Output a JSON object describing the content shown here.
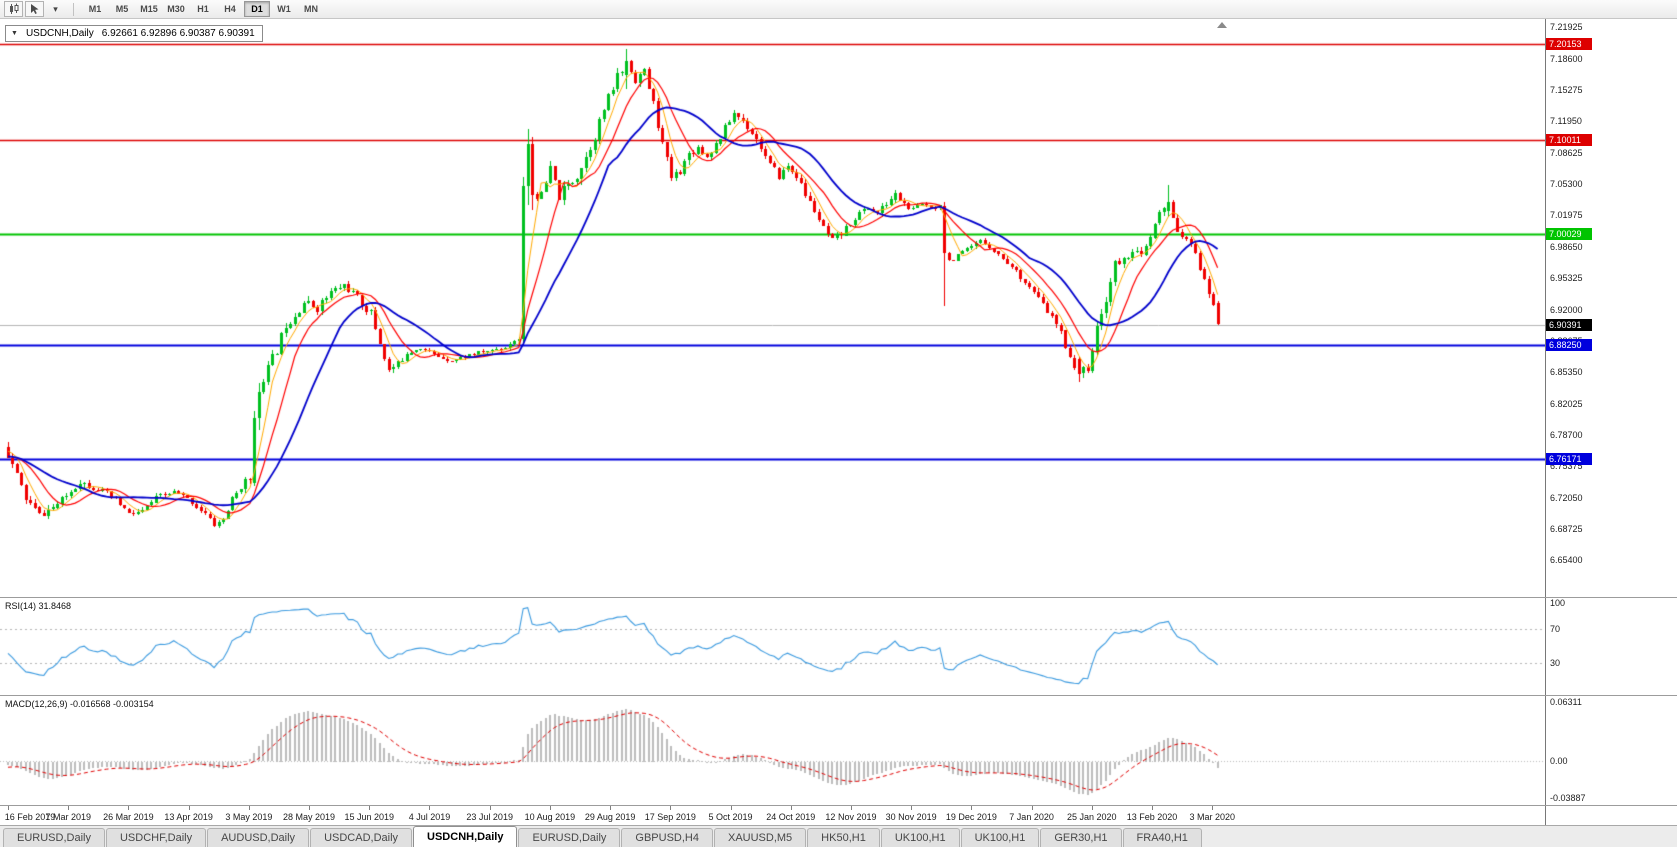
{
  "toolbar": {
    "timeframes": [
      "M1",
      "M5",
      "M15",
      "M30",
      "H1",
      "H4",
      "D1",
      "W1",
      "MN"
    ],
    "active_timeframe": "D1",
    "icons": [
      "candlestick-chart-icon",
      "cursor-icon",
      "dropdown-caret-icon"
    ]
  },
  "chart": {
    "symbol_label": "USDCNH,Daily",
    "ohlc_text": "6.92661 6.92896 6.90387 6.90391",
    "open": "6.92661",
    "high": "6.92896",
    "low": "6.90387",
    "close": "6.90391"
  },
  "rsi": {
    "label": "RSI(14) 31.8468",
    "period": 14,
    "current": 31.8468,
    "levels": [
      70,
      30
    ],
    "axis_labels": [
      "100",
      "70",
      "30"
    ],
    "axis_values": [
      100,
      70,
      30
    ],
    "ylim": [
      0,
      100
    ],
    "color": "#3c9be0"
  },
  "macd": {
    "label": "MACD(12,26,9) -0.016568 -0.003154",
    "fast": 12,
    "slow": 26,
    "signal_period": 9,
    "current_main": -0.016568,
    "current_signal": -0.003154,
    "axis_labels": [
      "0.06311",
      "0.00",
      "-0.03887"
    ],
    "axis_values": [
      0.06311,
      0,
      -0.03887
    ],
    "ylim": [
      -0.03887,
      0.06311
    ],
    "histogram_color": "#bdbdbd",
    "signal_color": "#e00000"
  },
  "tabs": {
    "items": [
      {
        "label": "EURUSD,Daily",
        "active": false
      },
      {
        "label": "USDCHF,Daily",
        "active": false
      },
      {
        "label": "AUDUSD,Daily",
        "active": false
      },
      {
        "label": "USDCAD,Daily",
        "active": false
      },
      {
        "label": "USDCNH,Daily",
        "active": true
      },
      {
        "label": "EURUSD,Daily",
        "active": false
      },
      {
        "label": "GBPUSD,H4",
        "active": false
      },
      {
        "label": "XAUUSD,M5",
        "active": false
      },
      {
        "label": "HK50,H1",
        "active": false
      },
      {
        "label": "UK100,H1",
        "active": false
      },
      {
        "label": "UK100,H1",
        "active": false
      },
      {
        "label": "GER30,H1",
        "active": false
      },
      {
        "label": "FRA40,H1",
        "active": false
      }
    ]
  },
  "chart_data": {
    "type": "candlestick",
    "symbol": "USDCNH",
    "timeframe": "Daily",
    "ohlc_current": {
      "open": 6.92661,
      "high": 6.92896,
      "low": 6.90387,
      "close": 6.90391
    },
    "ylim": [
      6.6142,
      7.228
    ],
    "y_tick_labels": [
      "7.21925",
      "7.18600",
      "7.15275",
      "7.11950",
      "7.08625",
      "7.05300",
      "7.01975",
      "6.98650",
      "6.95325",
      "6.92000",
      "6.88675",
      "6.85350",
      "6.82025",
      "6.78700",
      "6.75375",
      "6.72050",
      "6.68725",
      "6.65400"
    ],
    "x_labels": [
      "16 Feb 2019",
      "7 Mar 2019",
      "26 Mar 2019",
      "13 Apr 2019",
      "3 May 2019",
      "28 May 2019",
      "15 Jun 2019",
      "4 Jul 2019",
      "23 Jul 2019",
      "10 Aug 2019",
      "29 Aug 2019",
      "17 Sep 2019",
      "5 Oct 2019",
      "24 Oct 2019",
      "12 Nov 2019",
      "30 Nov 2019",
      "19 Dec 2019",
      "7 Jan 2020",
      "25 Jan 2020",
      "13 Feb 2020",
      "3 Mar 2020"
    ],
    "candles_per_x_label": 13.44,
    "visible_candles": 271,
    "prehistory_candles": 60,
    "seed": 11,
    "up_color": "#00c020",
    "down_color": "#f00000",
    "horizontal_levels": [
      {
        "price": 7.20153,
        "label": "7.20153",
        "color": "#dd0000",
        "width": 1.5
      },
      {
        "price": 7.10011,
        "label": "7.10011",
        "color": "#dd0000",
        "width": 1.5
      },
      {
        "price": 7.00029,
        "label": "7.00029",
        "color": "#00c400",
        "width": 2
      },
      {
        "price": 6.8825,
        "label": "6.88250",
        "color": "#0000dd",
        "width": 2
      },
      {
        "price": 6.76171,
        "label": "6.76171",
        "color": "#0000dd",
        "width": 2
      }
    ],
    "bid_line": {
      "price": 6.90391,
      "label": "6.90391",
      "color": "#b4b4b4",
      "tag_color": "#000000"
    },
    "moving_averages": [
      {
        "period": 5,
        "color": "#ffaa00",
        "width": 1
      },
      {
        "period": 10,
        "color": "#ff0000",
        "width": 1.2
      },
      {
        "period": 20,
        "color": "#0000cc",
        "width": 1.8
      }
    ],
    "price_path_anchors": [
      [
        -60,
        6.85,
        0.01
      ],
      [
        -40,
        6.8,
        0.009
      ],
      [
        -20,
        6.77,
        0.008
      ],
      [
        -5,
        6.758,
        0.008
      ],
      [
        0,
        6.778,
        0.01
      ],
      [
        2,
        6.755,
        0.012
      ],
      [
        5,
        6.72,
        0.011
      ],
      [
        8,
        6.702,
        0.01
      ],
      [
        11,
        6.71,
        0.009
      ],
      [
        14,
        6.722,
        0.008
      ],
      [
        17,
        6.738,
        0.008
      ],
      [
        21,
        6.73,
        0.007
      ],
      [
        25,
        6.718,
        0.007
      ],
      [
        28,
        6.703,
        0.008
      ],
      [
        31,
        6.706,
        0.007
      ],
      [
        34,
        6.72,
        0.007
      ],
      [
        38,
        6.727,
        0.006
      ],
      [
        42,
        6.716,
        0.006
      ],
      [
        45,
        6.703,
        0.007
      ],
      [
        47,
        6.692,
        0.007
      ],
      [
        49,
        6.698,
        0.007
      ],
      [
        51,
        6.718,
        0.008
      ],
      [
        53,
        6.733,
        0.009
      ],
      [
        55,
        6.74,
        0.01
      ],
      [
        57,
        6.84,
        0.012
      ],
      [
        59,
        6.858,
        0.012
      ],
      [
        61,
        6.878,
        0.013
      ],
      [
        63,
        6.905,
        0.012
      ],
      [
        65,
        6.915,
        0.011
      ],
      [
        67,
        6.928,
        0.01
      ],
      [
        70,
        6.922,
        0.01
      ],
      [
        73,
        6.938,
        0.01
      ],
      [
        76,
        6.946,
        0.009
      ],
      [
        79,
        6.932,
        0.009
      ],
      [
        82,
        6.916,
        0.01
      ],
      [
        84,
        6.885,
        0.011
      ],
      [
        86,
        6.855,
        0.011
      ],
      [
        88,
        6.862,
        0.009
      ],
      [
        90,
        6.875,
        0.008
      ],
      [
        93,
        6.88,
        0.006
      ],
      [
        96,
        6.872,
        0.006
      ],
      [
        100,
        6.866,
        0.005
      ],
      [
        104,
        6.872,
        0.005
      ],
      [
        108,
        6.876,
        0.005
      ],
      [
        112,
        6.88,
        0.006
      ],
      [
        114,
        6.888,
        0.007
      ],
      [
        115,
        6.89,
        0.008
      ],
      [
        118,
        7.048,
        0.018
      ],
      [
        120,
        7.038,
        0.016
      ],
      [
        122,
        7.068,
        0.015
      ],
      [
        124,
        7.04,
        0.014
      ],
      [
        126,
        7.052,
        0.012
      ],
      [
        128,
        7.062,
        0.012
      ],
      [
        130,
        7.082,
        0.012
      ],
      [
        132,
        7.105,
        0.012
      ],
      [
        134,
        7.132,
        0.012
      ],
      [
        136,
        7.155,
        0.012
      ],
      [
        137,
        7.168,
        0.011
      ],
      [
        139,
        7.178,
        0.011
      ],
      [
        141,
        7.165,
        0.011
      ],
      [
        143,
        7.172,
        0.011
      ],
      [
        145,
        7.138,
        0.011
      ],
      [
        147,
        7.095,
        0.011
      ],
      [
        149,
        7.06,
        0.01
      ],
      [
        151,
        7.068,
        0.009
      ],
      [
        153,
        7.085,
        0.009
      ],
      [
        155,
        7.092,
        0.008
      ],
      [
        157,
        7.082,
        0.008
      ],
      [
        159,
        7.095,
        0.008
      ],
      [
        161,
        7.112,
        0.008
      ],
      [
        163,
        7.128,
        0.008
      ],
      [
        165,
        7.12,
        0.008
      ],
      [
        167,
        7.108,
        0.008
      ],
      [
        169,
        7.092,
        0.008
      ],
      [
        171,
        7.072,
        0.009
      ],
      [
        173,
        7.062,
        0.008
      ],
      [
        175,
        7.072,
        0.008
      ],
      [
        177,
        7.062,
        0.008
      ],
      [
        179,
        7.042,
        0.008
      ],
      [
        181,
        7.025,
        0.008
      ],
      [
        183,
        7.005,
        0.009
      ],
      [
        185,
        6.992,
        0.009
      ],
      [
        187,
        7.0,
        0.008
      ],
      [
        189,
        7.012,
        0.007
      ],
      [
        191,
        7.022,
        0.007
      ],
      [
        193,
        7.028,
        0.007
      ],
      [
        195,
        7.022,
        0.007
      ],
      [
        197,
        7.032,
        0.008
      ],
      [
        199,
        7.042,
        0.009
      ],
      [
        201,
        7.032,
        0.008
      ],
      [
        203,
        7.025,
        0.007
      ],
      [
        205,
        7.032,
        0.007
      ],
      [
        207,
        7.03,
        0.007
      ],
      [
        209,
        7.03,
        0.007
      ],
      [
        210,
        6.978,
        0.008
      ],
      [
        212,
        6.972,
        0.007
      ],
      [
        214,
        6.98,
        0.006
      ],
      [
        216,
        6.986,
        0.006
      ],
      [
        218,
        6.992,
        0.006
      ],
      [
        220,
        6.988,
        0.006
      ],
      [
        222,
        6.978,
        0.006
      ],
      [
        224,
        6.97,
        0.006
      ],
      [
        226,
        6.96,
        0.006
      ],
      [
        228,
        6.95,
        0.006
      ],
      [
        230,
        6.938,
        0.007
      ],
      [
        232,
        6.925,
        0.007
      ],
      [
        234,
        6.912,
        0.007
      ],
      [
        236,
        6.895,
        0.008
      ],
      [
        238,
        6.87,
        0.009
      ],
      [
        240,
        6.852,
        0.009
      ],
      [
        242,
        6.858,
        0.009
      ],
      [
        244,
        6.898,
        0.011
      ],
      [
        246,
        6.932,
        0.011
      ],
      [
        248,
        6.968,
        0.011
      ],
      [
        250,
        6.972,
        0.009
      ],
      [
        252,
        6.984,
        0.008
      ],
      [
        254,
        6.976,
        0.008
      ],
      [
        256,
        6.996,
        0.009
      ],
      [
        258,
        7.022,
        0.01
      ],
      [
        260,
        7.028,
        0.009
      ],
      [
        262,
        7.005,
        0.008
      ],
      [
        264,
        6.992,
        0.008
      ],
      [
        266,
        6.982,
        0.008
      ],
      [
        268,
        6.948,
        0.009
      ],
      [
        270,
        6.9266,
        0.009
      ],
      [
        271,
        6.904,
        0.009
      ]
    ],
    "forced_candles": [
      {
        "i": 55,
        "o": 6.736,
        "h": 6.812,
        "l": 6.732,
        "c": 6.805
      },
      {
        "i": 56,
        "o": 6.805,
        "h": 6.842,
        "l": 6.792,
        "c": 6.833
      },
      {
        "i": 115,
        "o": 6.889,
        "h": 7.06,
        "l": 6.883,
        "c": 7.051
      },
      {
        "i": 116,
        "o": 7.051,
        "h": 7.111,
        "l": 7.03,
        "c": 7.096
      },
      {
        "i": 117,
        "o": 7.096,
        "h": 7.103,
        "l": 7.026,
        "c": 7.042
      },
      {
        "i": 138,
        "o": 7.168,
        "h": 7.196,
        "l": 7.154,
        "c": 7.183
      },
      {
        "i": 209,
        "o": 7.03,
        "h": 7.034,
        "l": 6.924,
        "c": 6.98
      },
      {
        "i": 239,
        "o": 6.868,
        "h": 6.87,
        "l": 6.843,
        "c": 6.852
      },
      {
        "i": 259,
        "o": 7.024,
        "h": 7.052,
        "l": 7.018,
        "c": 7.034
      },
      {
        "i": 270,
        "o": 6.92661,
        "h": 6.92896,
        "l": 6.90387,
        "c": 6.90391
      }
    ]
  }
}
